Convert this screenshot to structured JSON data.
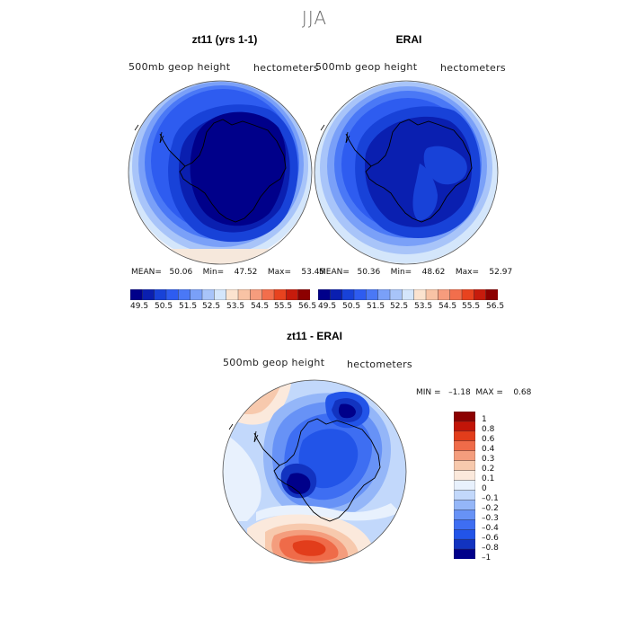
{
  "page": {
    "title": "JJA"
  },
  "colors": {
    "top_levels": [
      "#00008a",
      "#0a1fb0",
      "#1842d8",
      "#2e5cf0",
      "#4a78f6",
      "#7aa0f8",
      "#a8c4f9",
      "#d4e6fb",
      "#fbe3cf",
      "#f8c3a5",
      "#f69c7d",
      "#f26e4c",
      "#e8431f",
      "#c71b0c",
      "#8c0000"
    ],
    "diff_levels": [
      "#00008a",
      "#1233c0",
      "#2254e8",
      "#3e6ef2",
      "#6792f6",
      "#94b6f8",
      "#c2d8fb",
      "#e8f1fd",
      "#fbe9dc",
      "#f7c9ad",
      "#f49d7d",
      "#ef6b49",
      "#e23d1b",
      "#c21508",
      "#8c0000"
    ]
  },
  "chart_data": [
    {
      "type": "heatmap",
      "title": "zt11 (yrs 1-1)",
      "field_label": "500mb  geop  height",
      "units_label": "hectometers",
      "stats": {
        "mean": "50.06",
        "min": "47.52",
        "max": "53.45"
      },
      "stats_text": "MEAN=   50.06    Min=    47.52    Max=    53.45",
      "colorbar_ticks": [
        "49.5",
        "50.5",
        "51.5",
        "52.5",
        "53.5",
        "54.5",
        "55.5",
        "56.5"
      ]
    },
    {
      "type": "heatmap",
      "title": "ERAI",
      "field_label": "500mb  geop  height",
      "units_label": "hectometers",
      "stats": {
        "mean": "50.36",
        "min": "48.62",
        "max": "52.97"
      },
      "stats_text": "MEAN=   50.36    Min=    48.62    Max=    52.97",
      "colorbar_ticks": [
        "49.5",
        "50.5",
        "51.5",
        "52.5",
        "53.5",
        "54.5",
        "55.5",
        "56.5"
      ]
    },
    {
      "type": "heatmap",
      "title": "zt11 - ERAI",
      "field_label": "500mb  geop  height",
      "units_label": "hectometers",
      "stats": {
        "min": "-1.18",
        "max": "0.68"
      },
      "stats_text": "MIN =   –1.18  MAX =    0.68",
      "colorbar_ticks": [
        "1",
        "0.8",
        "0.6",
        "0.4",
        "0.3",
        "0.2",
        "0.1",
        "0",
        "–0.1",
        "–0.2",
        "–0.3",
        "–0.4",
        "–0.6",
        "–0.8",
        "–1"
      ]
    }
  ]
}
